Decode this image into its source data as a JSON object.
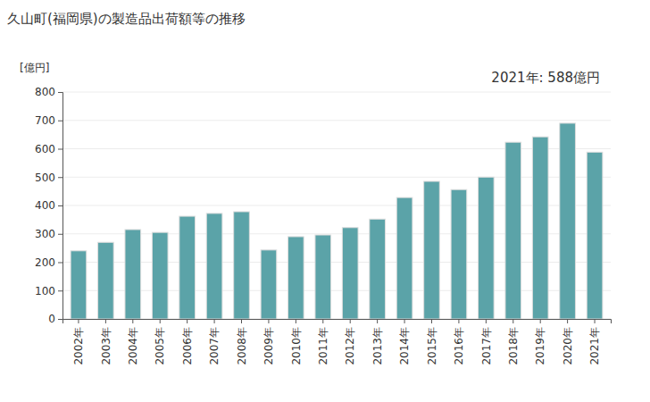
{
  "chart_data": {
    "type": "bar",
    "title": "久山町(福岡県)の製造品出荷額等の推移",
    "y_label": "[億円]",
    "annotation": "2021年: 588億円",
    "categories": [
      "2002年",
      "2003年",
      "2004年",
      "2005年",
      "2006年",
      "2007年",
      "2008年",
      "2009年",
      "2010年",
      "2011年",
      "2012年",
      "2013年",
      "2014年",
      "2015年",
      "2016年",
      "2017年",
      "2018年",
      "2019年",
      "2020年",
      "2021年"
    ],
    "values": [
      240,
      270,
      315,
      305,
      362,
      372,
      378,
      243,
      290,
      296,
      322,
      352,
      428,
      485,
      456,
      500,
      623,
      642,
      690,
      588
    ],
    "color": "#5ba3a8",
    "ylim": [
      0,
      800
    ],
    "yticks": [
      0,
      100,
      200,
      300,
      400,
      500,
      600,
      700,
      800
    ],
    "grid": true
  }
}
